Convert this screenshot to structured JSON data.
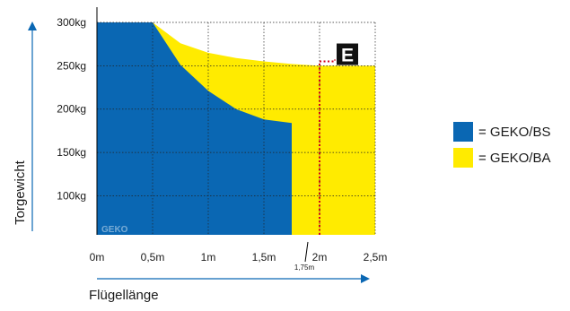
{
  "chart_data": {
    "type": "area",
    "xlabel": "Flügellänge",
    "ylabel": "Torgewicht",
    "x_unit": "m",
    "y_unit": "kg",
    "xlim": [
      0,
      2.5
    ],
    "ylim": [
      55,
      300
    ],
    "grid": true,
    "x_ticks": [
      {
        "value": 0,
        "label": "0m"
      },
      {
        "value": 0.5,
        "label": "0,5m"
      },
      {
        "value": 1,
        "label": "1m"
      },
      {
        "value": 1.5,
        "label": "1,5m"
      },
      {
        "value": 2,
        "label": "2m"
      },
      {
        "value": 2.5,
        "label": "2,5m"
      }
    ],
    "y_ticks": [
      {
        "value": 100,
        "label": "100kg"
      },
      {
        "value": 150,
        "label": "150kg"
      },
      {
        "value": 200,
        "label": "200kg"
      },
      {
        "value": 250,
        "label": "250kg"
      },
      {
        "value": 300,
        "label": "300kg"
      }
    ],
    "extra_x_marker": {
      "value": 1.75,
      "label": "1,75m"
    },
    "series": [
      {
        "name": "= GEKO/BA",
        "color": "#FFEB00",
        "points": [
          [
            0,
            300
          ],
          [
            0.5,
            300
          ],
          [
            0.75,
            276
          ],
          [
            1,
            265
          ],
          [
            1.25,
            259
          ],
          [
            1.5,
            255
          ],
          [
            1.75,
            252
          ],
          [
            2,
            250
          ],
          [
            2.5,
            250
          ]
        ]
      },
      {
        "name": "= GEKO/BS",
        "color": "#0A67B3",
        "points": [
          [
            0,
            300
          ],
          [
            0.5,
            300
          ],
          [
            0.75,
            251
          ],
          [
            1,
            221
          ],
          [
            1.25,
            200
          ],
          [
            1.5,
            188
          ],
          [
            1.75,
            184
          ]
        ]
      }
    ],
    "annotations": [
      {
        "type": "dotted-marker",
        "x": 2,
        "y": 255,
        "label": "E",
        "color": "#D0021B"
      },
      {
        "type": "watermark",
        "text": "GEKO"
      }
    ],
    "legend_position": "right"
  }
}
